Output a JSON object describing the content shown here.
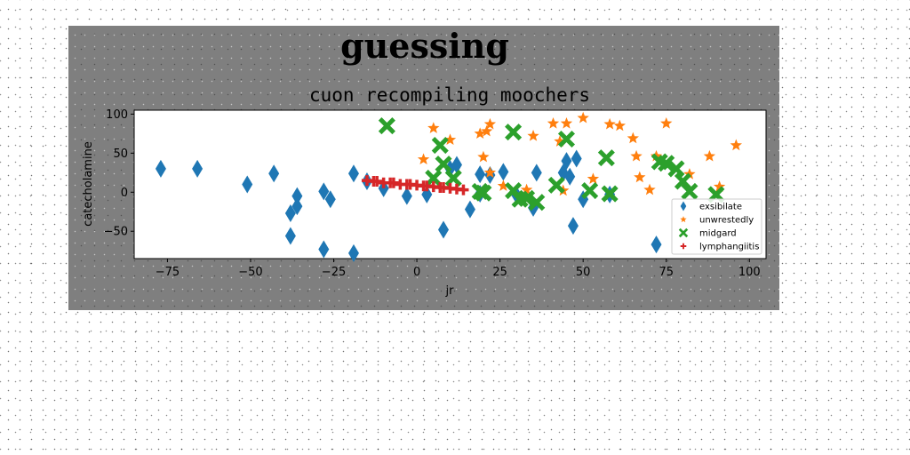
{
  "figure": {
    "suptitle": "guessing"
  },
  "chart_data": {
    "type": "scatter",
    "title": "cuon recompiling moochers",
    "xlabel": "jr",
    "ylabel": "catecholamine",
    "xlim": [
      -85,
      105
    ],
    "ylim": [
      -85,
      105
    ],
    "xticks": [
      -75,
      -50,
      -25,
      0,
      25,
      50,
      75,
      100
    ],
    "yticks": [
      -50,
      0,
      50,
      100
    ],
    "grid": false,
    "legend_position": "lower right",
    "series": [
      {
        "name": "exsibilate",
        "color": "#1f77b4",
        "marker": "diamond",
        "points": [
          [
            -77,
            30
          ],
          [
            -66,
            30
          ],
          [
            -51,
            10
          ],
          [
            -43,
            24
          ],
          [
            -38,
            -27
          ],
          [
            -38,
            -56
          ],
          [
            -36,
            -5
          ],
          [
            -36,
            -18
          ],
          [
            -28,
            1
          ],
          [
            -28,
            -73
          ],
          [
            -26,
            -9
          ],
          [
            -19,
            24
          ],
          [
            -19,
            -78
          ],
          [
            -15,
            14
          ],
          [
            -10,
            5
          ],
          [
            -3,
            -5
          ],
          [
            3,
            -3
          ],
          [
            8,
            -48
          ],
          [
            10,
            30
          ],
          [
            12,
            35
          ],
          [
            16,
            -22
          ],
          [
            19,
            23
          ],
          [
            19,
            -2
          ],
          [
            22,
            22
          ],
          [
            26,
            26
          ],
          [
            30,
            -4
          ],
          [
            35,
            -20
          ],
          [
            36,
            25
          ],
          [
            44,
            25
          ],
          [
            45,
            40
          ],
          [
            46,
            20
          ],
          [
            47,
            -43
          ],
          [
            48,
            43
          ],
          [
            50,
            -9
          ],
          [
            58,
            -3
          ],
          [
            72,
            -67
          ]
        ]
      },
      {
        "name": "unwrestedly",
        "color": "#ff7f0e",
        "marker": "star",
        "points": [
          [
            2,
            42
          ],
          [
            5,
            82
          ],
          [
            10,
            67
          ],
          [
            19,
            75
          ],
          [
            20,
            45
          ],
          [
            21,
            78
          ],
          [
            22,
            25
          ],
          [
            22,
            87
          ],
          [
            26,
            8
          ],
          [
            33,
            3
          ],
          [
            35,
            72
          ],
          [
            41,
            88
          ],
          [
            43,
            65
          ],
          [
            44,
            2
          ],
          [
            45,
            88
          ],
          [
            50,
            95
          ],
          [
            53,
            17
          ],
          [
            58,
            87
          ],
          [
            61,
            85
          ],
          [
            65,
            69
          ],
          [
            66,
            46
          ],
          [
            67,
            19
          ],
          [
            70,
            3
          ],
          [
            72,
            46
          ],
          [
            75,
            88
          ],
          [
            82,
            23
          ],
          [
            88,
            46
          ],
          [
            91,
            7
          ],
          [
            96,
            60
          ]
        ]
      },
      {
        "name": "midgard",
        "color": "#2ca02c",
        "marker": "x",
        "points": [
          [
            -9,
            85
          ],
          [
            5,
            18
          ],
          [
            7,
            60
          ],
          [
            8,
            36
          ],
          [
            11,
            18
          ],
          [
            19,
            1
          ],
          [
            20,
            -1
          ],
          [
            29,
            77
          ],
          [
            29,
            2
          ],
          [
            31,
            -9
          ],
          [
            33,
            -8
          ],
          [
            36,
            -13
          ],
          [
            42,
            9
          ],
          [
            45,
            68
          ],
          [
            52,
            2
          ],
          [
            57,
            44
          ],
          [
            58,
            -2
          ],
          [
            73,
            39
          ],
          [
            75,
            37
          ],
          [
            78,
            30
          ],
          [
            80,
            14
          ],
          [
            82,
            1
          ],
          [
            90,
            -3
          ]
        ]
      },
      {
        "name": "lymphangiitis",
        "color": "#d62728",
        "marker": "plus",
        "points": [
          [
            -15,
            15
          ],
          [
            -13,
            14
          ],
          [
            -12,
            14
          ],
          [
            -10,
            12
          ],
          [
            -8,
            12
          ],
          [
            -7,
            12
          ],
          [
            -5,
            10
          ],
          [
            -3,
            10
          ],
          [
            -2,
            10
          ],
          [
            0,
            9
          ],
          [
            2,
            8
          ],
          [
            3,
            8
          ],
          [
            5,
            7
          ],
          [
            7,
            6
          ],
          [
            8,
            6
          ],
          [
            10,
            5
          ],
          [
            12,
            4
          ],
          [
            14,
            3
          ]
        ]
      }
    ]
  }
}
